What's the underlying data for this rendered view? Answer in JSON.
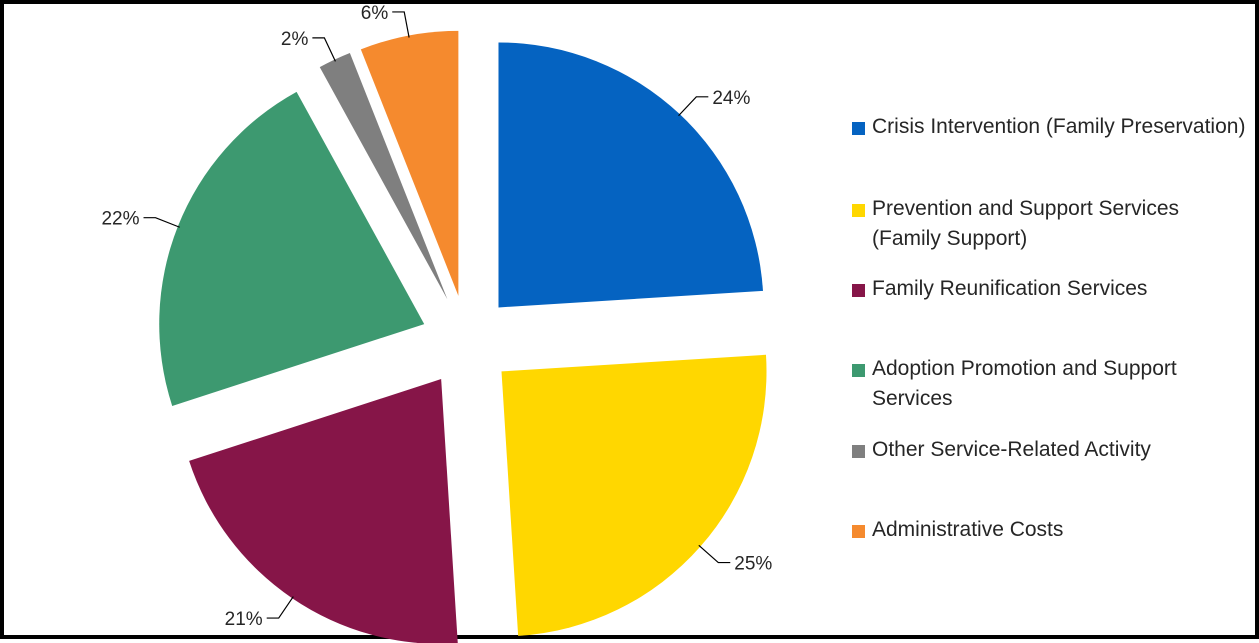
{
  "chart_data": {
    "type": "pie",
    "exploded": true,
    "legend_position": "right",
    "slices": [
      {
        "name": "Crisis Intervention (Family Preservation)",
        "value": 24,
        "label": "24%",
        "color": "#0563C1"
      },
      {
        "name": "Prevention and Support Services (Family Support)",
        "value": 25,
        "label": "25%",
        "color": "#FFD700"
      },
      {
        "name": "Family Reunification Services",
        "value": 21,
        "label": "21%",
        "color": "#861548"
      },
      {
        "name": "Adoption Promotion and Support Services",
        "value": 22,
        "label": "22%",
        "color": "#3D9970"
      },
      {
        "name": "Other Service-Related Activity",
        "value": 2,
        "label": "2%",
        "color": "#7F7F7F"
      },
      {
        "name": "Administrative Costs",
        "value": 6,
        "label": "6%",
        "color": "#F58A2E"
      }
    ]
  }
}
